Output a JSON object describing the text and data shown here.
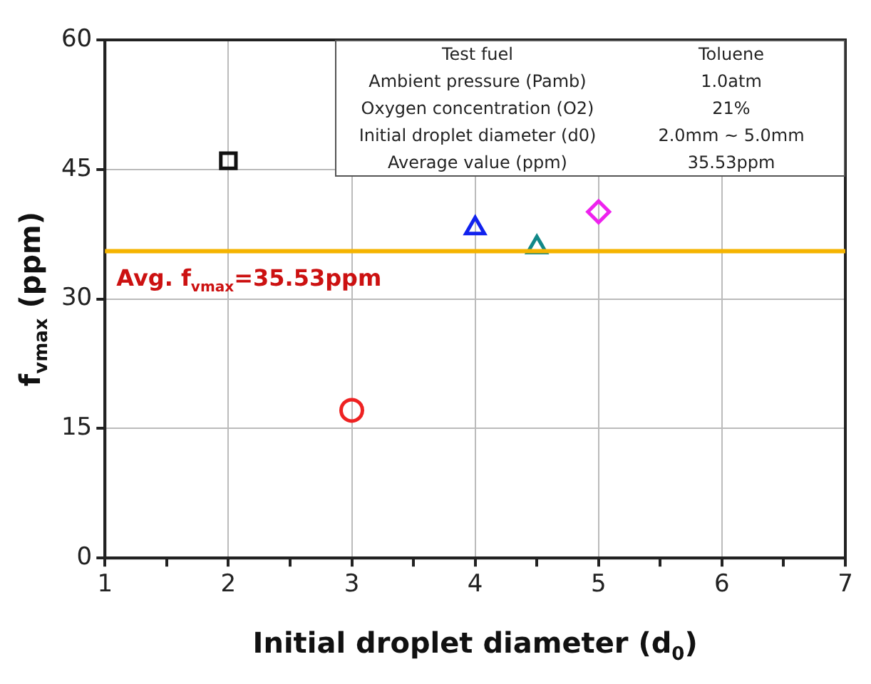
{
  "chart_data": {
    "type": "scatter",
    "xlabel": "Initial droplet diameter (d$_{0}$)",
    "ylabel": "f$_{vmax}$ (ppm)",
    "xlim": [
      1,
      7
    ],
    "xticks": [
      1,
      {
        "value": 1.5,
        "label": null
      },
      2,
      {
        "value": 2.5,
        "label": null
      },
      3,
      {
        "value": 3.5,
        "label": null
      },
      4,
      {
        "value": 4.5,
        "label": null
      },
      5,
      {
        "value": 5.5,
        "label": null
      },
      6,
      {
        "value": 6.5,
        "label": null
      },
      7
    ],
    "ylim": [
      0,
      60
    ],
    "yticks": [
      0,
      15,
      30,
      45,
      60
    ],
    "grid": true,
    "series": [
      {
        "color": "#111111",
        "marker": "square",
        "x": [
          2
        ],
        "values": [
          46.0
        ]
      },
      {
        "color": "#ee2222",
        "marker": "circle",
        "x": [
          3
        ],
        "values": [
          17.1
        ]
      },
      {
        "color": "#1122ee",
        "marker": "triangle",
        "x": [
          4
        ],
        "values": [
          38.2
        ]
      },
      {
        "color": "#118888",
        "marker": "triangle",
        "x": [
          4.5
        ],
        "values": [
          36.0
        ]
      },
      {
        "color": "#ee22ee",
        "marker": "diamond",
        "x": [
          5
        ],
        "values": [
          40.1
        ]
      }
    ],
    "ref_lines": [
      {
        "axis": "y",
        "value": 35.53,
        "label": "Avg. f$_{vmax}$=35.53ppm",
        "color": "#f5b400"
      }
    ],
    "annotations": [
      "Test fuel",
      "Toluene",
      "Ambient pressure (Pamb)",
      "1.0atm",
      "Oxygen concentration (O2)",
      "21%",
      "Initial droplet diameter (d0)",
      "2.0mm ~ 5.0mm",
      "Average value (ppm)",
      "35.53ppm"
    ]
  }
}
